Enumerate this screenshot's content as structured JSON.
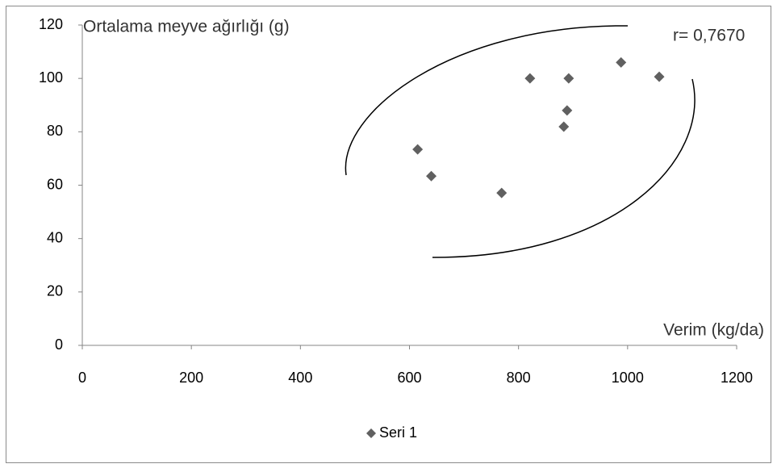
{
  "chart_data": {
    "type": "scatter",
    "title": "Ortalama meyve ağırlığı (g)",
    "annotation": "r= 0,7670",
    "x_label": "Verim (kg/da)",
    "series": [
      {
        "name": "Seri 1",
        "color": "#606060",
        "x": [
          615,
          640,
          769,
          821,
          883,
          889,
          892,
          988,
          1058
        ],
        "values": [
          73.4,
          63.4,
          57.1,
          100,
          81.9,
          88,
          100,
          106,
          100.6
        ]
      }
    ],
    "xlim": [
      0,
      1200
    ],
    "xticks": [
      0,
      200,
      400,
      600,
      800,
      1000,
      1200
    ],
    "ylim": [
      0,
      120
    ],
    "yticks": [
      0,
      20,
      40,
      60,
      80,
      100,
      120
    ],
    "grid": false,
    "legend": "bottom"
  }
}
